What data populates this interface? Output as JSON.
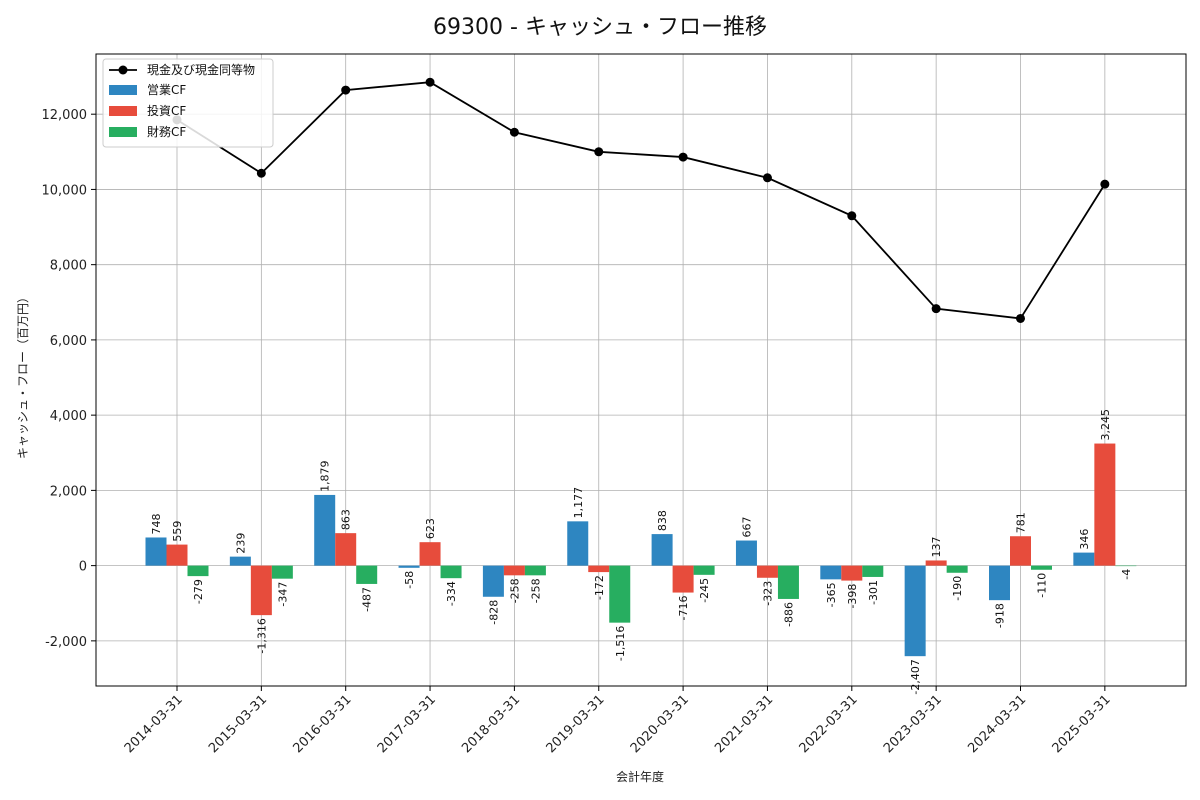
{
  "chart_data": {
    "type": "bar",
    "title": "69300 - キャッシュ・フロー推移",
    "xlabel": "会計年度",
    "ylabel": "キャッシュ・フロー（百万円）",
    "ylim": [
      -3200,
      13600
    ],
    "yticks": [
      -2000,
      0,
      2000,
      4000,
      6000,
      8000,
      10000,
      12000
    ],
    "ytick_labels": [
      "-2,000",
      "0",
      "2,000",
      "4,000",
      "6,000",
      "8,000",
      "10,000",
      "12,000"
    ],
    "grid": true,
    "legend_position": "top-left",
    "categories": [
      "2014-03-31",
      "2015-03-31",
      "2016-03-31",
      "2017-03-31",
      "2018-03-31",
      "2019-03-31",
      "2020-03-31",
      "2021-03-31",
      "2022-03-31",
      "2023-03-31",
      "2024-03-31",
      "2025-03-31"
    ],
    "line_series": {
      "name": "現金及び現金同等物",
      "color": "#000000",
      "values": [
        11850,
        10430,
        12640,
        12850,
        11520,
        11000,
        10860,
        10310,
        9300,
        6830,
        6570,
        10140
      ]
    },
    "series": [
      {
        "name": "営業CF",
        "color": "#2e86c1",
        "values": [
          748,
          239,
          1879,
          -58,
          -828,
          1177,
          838,
          667,
          -365,
          -2407,
          -918,
          346
        ],
        "labels": [
          "748",
          "239",
          "1,879",
          "-58",
          "-828",
          "1,177",
          "838",
          "667",
          "-365",
          "-2,407",
          "-918",
          "346"
        ]
      },
      {
        "name": "投資CF",
        "color": "#e74c3c",
        "values": [
          559,
          -1316,
          863,
          623,
          -258,
          -172,
          -716,
          -323,
          -398,
          137,
          781,
          3245
        ],
        "labels": [
          "559",
          "-1,316",
          "863",
          "623",
          "-258",
          "-172",
          "-716",
          "-323",
          "-398",
          "137",
          "781",
          "3,245"
        ]
      },
      {
        "name": "財務CF",
        "color": "#27ae60",
        "values": [
          -279,
          -347,
          -487,
          -334,
          -258,
          -1516,
          -245,
          -886,
          -301,
          -190,
          -110,
          -4
        ],
        "labels": [
          "-279",
          "-347",
          "-487",
          "-334",
          "-258",
          "-1,516",
          "-245",
          "-886",
          "-301",
          "-190",
          "-110",
          "-4"
        ]
      }
    ]
  }
}
